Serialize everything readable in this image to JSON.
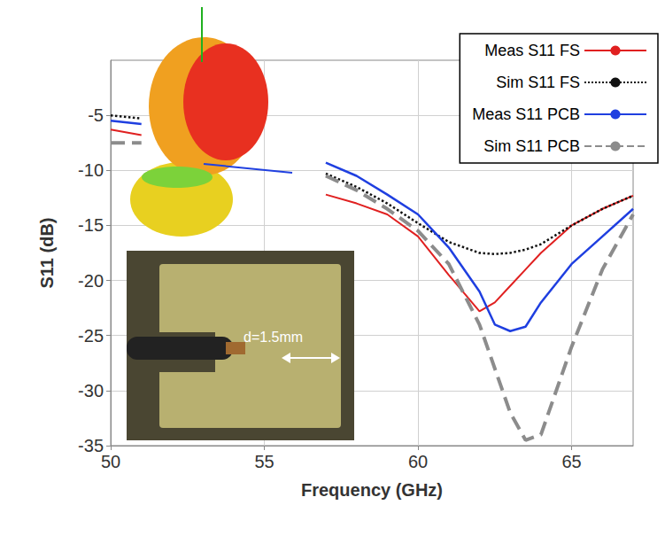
{
  "chart_data": {
    "type": "line",
    "xlabel": "Frequency (GHz)",
    "ylabel": "S11 (dB)",
    "x": [
      50,
      51,
      52,
      57,
      58,
      59,
      60,
      61,
      62,
      62.5,
      63,
      63.5,
      64,
      65,
      66,
      67
    ],
    "series": [
      {
        "name": "Meas S11 FS",
        "color": "#e02020",
        "line_style": "solid",
        "values": [
          -6.3,
          -6.8,
          null,
          -12.2,
          -13.0,
          -14.0,
          -16.0,
          -19.5,
          -22.8,
          -22.0,
          -20.5,
          -19.0,
          -17.5,
          -15.0,
          -13.5,
          -12.3
        ]
      },
      {
        "name": "Sim S11 FS",
        "color": "#111111",
        "line_style": "dotted",
        "values": [
          -5.0,
          -5.3,
          null,
          -10.3,
          -11.5,
          -13.0,
          -14.8,
          -16.5,
          -17.5,
          -17.6,
          -17.5,
          -17.2,
          -16.7,
          -15.0,
          -13.5,
          -12.3
        ]
      },
      {
        "name": "Meas S11 PCB",
        "color": "#1f3fe0",
        "line_style": "solid",
        "values": [
          -5.5,
          -5.8,
          null,
          -9.3,
          -10.5,
          -12.2,
          -14.0,
          -17.0,
          -21.0,
          -24.0,
          -24.6,
          -24.2,
          -22.0,
          -18.5,
          -16.0,
          -13.5
        ]
      },
      {
        "name": "Sim S11 PCB",
        "color": "#8c8c8c",
        "line_style": "dashed",
        "values": [
          -7.5,
          -7.5,
          null,
          -10.5,
          -11.8,
          -13.5,
          -15.5,
          -18.5,
          -24.0,
          -28.0,
          -32.0,
          -34.5,
          -34.0,
          -26.0,
          -19.0,
          -14.0
        ]
      }
    ],
    "xlim": [
      50,
      67
    ],
    "xticks": [
      50,
      55,
      60,
      65
    ],
    "ylim": [
      -35,
      0
    ],
    "yticks": [
      -35,
      -30,
      -25,
      -20,
      -15,
      -10,
      -5
    ],
    "grid": true,
    "legend": "upper right",
    "annotations": [
      {
        "text": "d=1.5mm"
      }
    ]
  }
}
